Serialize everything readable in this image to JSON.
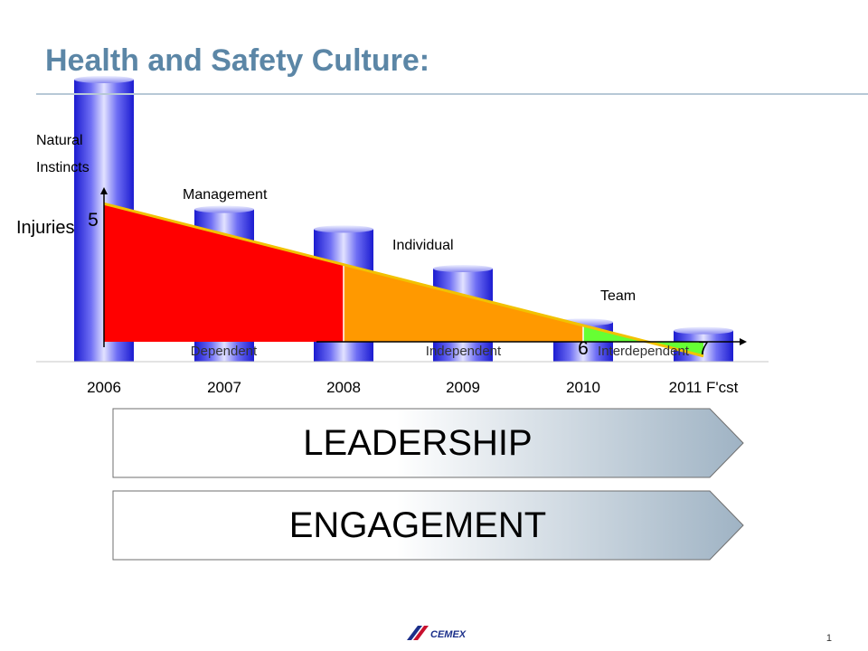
{
  "slide": {
    "title": "Health and Safety Culture:",
    "slide_number": "1",
    "logo_text": "CEMEX"
  },
  "colors": {
    "title": "#5b86a6",
    "dependent": "#ff0000",
    "independent": "#ff9900",
    "interdependent": "#66ff33",
    "trend_line": "#f2c200",
    "bar_dark": "#1b1bd0",
    "bar_light": "#e2e2ff"
  },
  "chart_data": {
    "type": "bar",
    "categories": [
      "2006",
      "2007",
      "2008",
      "2009",
      "2010",
      "2011 F'cst"
    ],
    "values": [
      10.0,
      5.4,
      4.7,
      3.3,
      1.4,
      1.1
    ],
    "ylim": [
      0,
      10
    ],
    "ylabel": "Injuries",
    "grid": false,
    "legend": "none",
    "stage_labels": [
      {
        "text": "Natural\nInstincts",
        "x": "2006"
      },
      {
        "text": "Management",
        "x": "2007"
      },
      {
        "text": "Individual",
        "x": "2009"
      },
      {
        "text": "Team",
        "x": "2010"
      }
    ],
    "zones": [
      {
        "label": "Dependent",
        "from": "2006",
        "to": "2008"
      },
      {
        "label": "Independent",
        "from": "2008",
        "to": "2010"
      },
      {
        "label": "Interdependent",
        "from": "2010",
        "to": "2011 F'cst"
      }
    ],
    "trend": [
      {
        "x": "2006",
        "y": 5.6
      },
      {
        "x": "2011 F'cst",
        "y": 0.2
      }
    ],
    "axis_annotations": [
      "5",
      "6",
      "7"
    ],
    "banners": [
      "LEADERSHIP",
      "ENGAGEMENT"
    ]
  }
}
